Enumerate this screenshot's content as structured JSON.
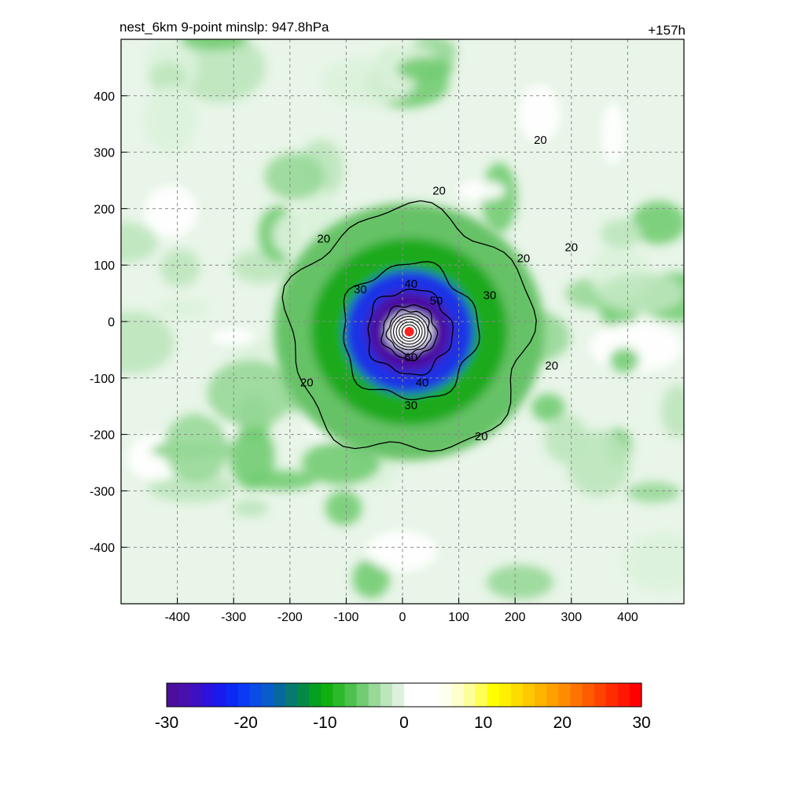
{
  "chart_data": {
    "type": "heatmap",
    "title_left": "nest_6km  9-point minslp: 947.8hPa",
    "title_right": "+157h",
    "xlabel": "",
    "ylabel": "",
    "xlim": [
      -500,
      500
    ],
    "ylim": [
      -500,
      500
    ],
    "x_ticks": [
      -400,
      -300,
      -200,
      -100,
      0,
      100,
      200,
      300,
      400
    ],
    "y_ticks": [
      400,
      300,
      200,
      100,
      0,
      -100,
      -200,
      -300,
      -400
    ],
    "grid": true,
    "storm_center": {
      "x": 12,
      "y": -18,
      "color": "#ff2020"
    },
    "shading_bands": [
      {
        "radius": 240,
        "value": -8,
        "color": "#66c266"
      },
      {
        "radius": 175,
        "value": -12,
        "color": "#1faa1f"
      },
      {
        "radius": 115,
        "value": -18,
        "color": "#1f32e6"
      },
      {
        "radius": 75,
        "value": -26,
        "color": "#4b0fa0"
      }
    ],
    "contours": [
      {
        "level": 20,
        "radius": 215,
        "label": "20"
      },
      {
        "level": 30,
        "radius": 120,
        "label": "30"
      },
      {
        "level": 40,
        "radius": 75,
        "label": "40"
      },
      {
        "level": 50,
        "radius": 48,
        "label": "50"
      },
      {
        "level": 60,
        "radius": 38,
        "label": "60"
      }
    ],
    "contour_labels": [
      {
        "text": "20",
        "x": -140,
        "y": 140
      },
      {
        "text": "20",
        "x": 65,
        "y": 225
      },
      {
        "text": "20",
        "x": 245,
        "y": 315
      },
      {
        "text": "20",
        "x": 215,
        "y": 105
      },
      {
        "text": "20",
        "x": 300,
        "y": 125
      },
      {
        "text": "20",
        "x": 265,
        "y": -85
      },
      {
        "text": "20",
        "x": -170,
        "y": -115
      },
      {
        "text": "20",
        "x": 140,
        "y": -210
      },
      {
        "text": "30",
        "x": -75,
        "y": 50
      },
      {
        "text": "30",
        "x": 155,
        "y": 40
      },
      {
        "text": "30",
        "x": 15,
        "y": -155
      },
      {
        "text": "40",
        "x": 15,
        "y": 60
      },
      {
        "text": "40",
        "x": 35,
        "y": -115
      },
      {
        "text": "50",
        "x": 60,
        "y": 30
      },
      {
        "text": "60",
        "x": 15,
        "y": -70
      }
    ],
    "colorbar": {
      "min": -30,
      "max": 30,
      "ticks": [
        -30,
        -20,
        -10,
        0,
        10,
        20,
        30
      ],
      "colors": [
        "#4b0f9c",
        "#4a10ae",
        "#3e10c4",
        "#2b12dc",
        "#1a1aee",
        "#0c28f5",
        "#0a3af5",
        "#0a4de6",
        "#0a5ccc",
        "#08689e",
        "#067a6e",
        "#058a46",
        "#06a020",
        "#10b010",
        "#2cba2c",
        "#4cc24c",
        "#72cc72",
        "#98d898",
        "#bce6bc",
        "#dcf2dc",
        "#ffffff",
        "#ffffff",
        "#ffffff",
        "#fffff0",
        "#ffffcc",
        "#ffff99",
        "#ffff55",
        "#ffff00",
        "#fff000",
        "#ffdc00",
        "#ffc800",
        "#ffb400",
        "#ffa000",
        "#ff8c00",
        "#ff7400",
        "#ff5c00",
        "#ff4400",
        "#ff2c00",
        "#ff1800",
        "#ff0000"
      ]
    }
  }
}
